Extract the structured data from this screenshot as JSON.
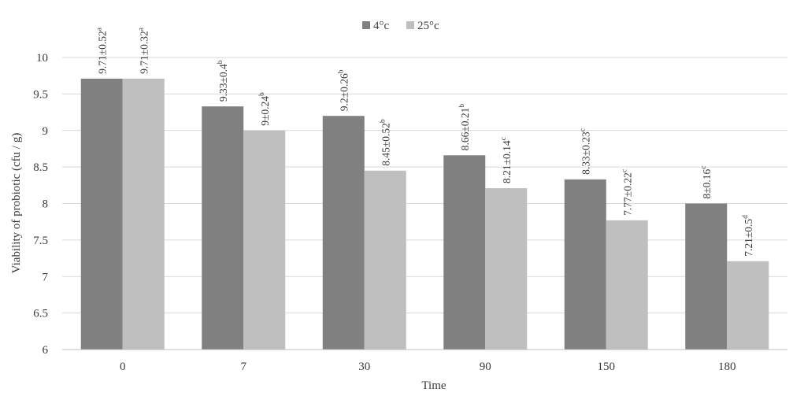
{
  "chart_data": {
    "type": "bar",
    "title": "",
    "xlabel": "Time",
    "ylabel": "Viability of probiotic (cfu / g)",
    "categories": [
      "0",
      "7",
      "30",
      "90",
      "150",
      "180"
    ],
    "ylim": [
      6,
      10
    ],
    "yticks": [
      "6",
      "6.5",
      "7",
      "7.5",
      "8",
      "8.5",
      "9",
      "9.5",
      "10"
    ],
    "grid": true,
    "legend_position": "top-center",
    "series": [
      {
        "name": "4°c",
        "color": "#808080",
        "values": [
          9.71,
          9.33,
          9.2,
          8.66,
          8.33,
          8.0
        ],
        "labels": [
          {
            "main": "9.71±0.52",
            "sup": "a"
          },
          {
            "main": "9.33±0.4",
            "sup": "b"
          },
          {
            "main": "9.2±0.26",
            "sup": "b"
          },
          {
            "main": "8.66±0.21",
            "sup": "b"
          },
          {
            "main": "8.33±0.23",
            "sup": "c"
          },
          {
            "main": "8±0.16",
            "sup": "c"
          }
        ]
      },
      {
        "name": "25°c",
        "color": "#bfbfbf",
        "values": [
          9.71,
          9.0,
          8.45,
          8.21,
          7.77,
          7.21
        ],
        "labels": [
          {
            "main": "9.71±0.32",
            "sup": "a"
          },
          {
            "main": "9±0.24",
            "sup": "b"
          },
          {
            "main": "8.45±0.52",
            "sup": "b"
          },
          {
            "main": "8.21±0.14",
            "sup": "c"
          },
          {
            "main": "7.77±0.22",
            "sup": "c"
          },
          {
            "main": "7.21±0.5",
            "sup": "d"
          }
        ]
      }
    ]
  }
}
